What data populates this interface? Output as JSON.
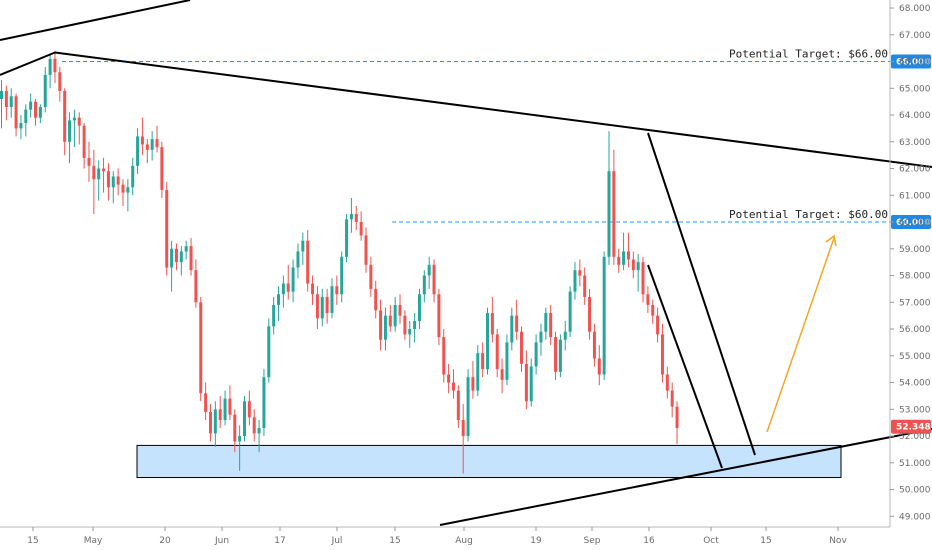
{
  "chart_data": {
    "type": "candlestick",
    "y_axis": {
      "min": 48.6,
      "max": 68.3,
      "ticks": [
        "49.000",
        "50.000",
        "51.000",
        "52.000",
        "53.000",
        "54.000",
        "55.000",
        "56.000",
        "57.000",
        "58.000",
        "59.000",
        "60.000",
        "61.000",
        "62.000",
        "63.000",
        "64.000",
        "65.000",
        "66.000",
        "67.000",
        "68.000"
      ],
      "position": "right"
    },
    "x_axis": {
      "labels": [
        "15",
        "May",
        "20",
        "Jun",
        "17",
        "Jul",
        "15",
        "Aug",
        "19",
        "Sep",
        "16",
        "Oct",
        "15",
        "Nov"
      ]
    },
    "last_price": {
      "value": 52.348,
      "label": "52.348",
      "color": "#ef5350"
    },
    "annotations": [
      {
        "text": "Potential Target: $66.00",
        "price": 66.0,
        "badge": "66.000"
      },
      {
        "text": "Potential Target: $60.00",
        "price": 60.0,
        "badge": "60.000"
      }
    ],
    "support_zone": {
      "low": 50.45,
      "high": 51.65
    },
    "colors": {
      "up": "#26a69a",
      "down": "#ef5350",
      "target_line": "#2196f3",
      "badge": "#1e88e5",
      "zone_fill": "#bbdefb",
      "trendline": "#000000",
      "projection_arrow": "#f5a623"
    },
    "candles": [
      [
        64.6,
        65.3,
        63.5,
        64.9
      ],
      [
        64.9,
        65.1,
        63.8,
        64.3
      ],
      [
        64.3,
        65.0,
        63.9,
        64.7
      ],
      [
        64.7,
        64.8,
        63.2,
        63.5
      ],
      [
        63.5,
        64.0,
        63.1,
        63.7
      ],
      [
        63.7,
        64.4,
        63.2,
        64.2
      ],
      [
        64.2,
        64.8,
        63.9,
        64.5
      ],
      [
        64.5,
        64.6,
        63.6,
        63.9
      ],
      [
        63.9,
        64.4,
        63.7,
        64.3
      ],
      [
        64.3,
        65.8,
        64.1,
        65.5
      ],
      [
        65.5,
        66.3,
        65.0,
        66.1
      ],
      [
        66.1,
        66.4,
        65.2,
        65.6
      ],
      [
        65.6,
        65.8,
        64.5,
        64.9
      ],
      [
        64.9,
        65.0,
        62.5,
        63.0
      ],
      [
        63.0,
        64.1,
        62.2,
        63.8
      ],
      [
        63.8,
        64.2,
        62.8,
        63.9
      ],
      [
        63.9,
        64.1,
        62.9,
        63.6
      ],
      [
        63.6,
        63.7,
        62.0,
        62.4
      ],
      [
        62.4,
        63.0,
        61.5,
        62.1
      ],
      [
        62.1,
        62.7,
        60.3,
        61.6
      ],
      [
        61.6,
        62.3,
        60.8,
        62.0
      ],
      [
        62.0,
        62.4,
        61.1,
        61.9
      ],
      [
        61.9,
        62.2,
        60.8,
        61.3
      ],
      [
        61.3,
        61.9,
        60.7,
        61.7
      ],
      [
        61.7,
        62.0,
        61.0,
        61.4
      ],
      [
        61.4,
        61.6,
        60.6,
        61.1
      ],
      [
        61.1,
        61.6,
        60.4,
        61.3
      ],
      [
        61.3,
        62.4,
        61.0,
        62.1
      ],
      [
        62.1,
        63.5,
        61.8,
        63.2
      ],
      [
        63.2,
        63.9,
        62.5,
        62.9
      ],
      [
        62.9,
        63.1,
        62.2,
        62.7
      ],
      [
        62.7,
        63.4,
        62.3,
        63.1
      ],
      [
        63.1,
        63.6,
        62.6,
        62.8
      ],
      [
        62.8,
        63.0,
        60.9,
        61.2
      ],
      [
        61.2,
        61.5,
        58.0,
        58.3
      ],
      [
        58.3,
        59.3,
        57.4,
        59.0
      ],
      [
        59.0,
        59.2,
        58.2,
        58.5
      ],
      [
        58.5,
        59.1,
        58.0,
        58.9
      ],
      [
        58.9,
        59.3,
        58.6,
        59.1
      ],
      [
        59.1,
        59.4,
        58.0,
        58.2
      ],
      [
        58.2,
        58.6,
        56.8,
        57.0
      ],
      [
        57.0,
        57.2,
        53.3,
        53.6
      ],
      [
        53.6,
        54.0,
        52.6,
        52.9
      ],
      [
        52.9,
        53.2,
        51.8,
        52.1
      ],
      [
        52.1,
        53.3,
        51.6,
        53.0
      ],
      [
        53.0,
        53.5,
        52.3,
        52.6
      ],
      [
        52.6,
        53.7,
        52.4,
        53.4
      ],
      [
        53.4,
        53.9,
        52.6,
        52.8
      ],
      [
        52.8,
        53.0,
        51.4,
        51.8
      ],
      [
        51.8,
        52.4,
        50.7,
        52.0
      ],
      [
        52.0,
        53.5,
        51.8,
        53.3
      ],
      [
        53.3,
        53.7,
        52.4,
        52.7
      ],
      [
        52.7,
        53.0,
        51.8,
        52.1
      ],
      [
        52.1,
        52.6,
        51.4,
        52.3
      ],
      [
        52.3,
        54.5,
        52.0,
        54.2
      ],
      [
        54.2,
        56.4,
        54.0,
        56.1
      ],
      [
        56.1,
        57.2,
        55.8,
        56.9
      ],
      [
        56.9,
        57.6,
        56.3,
        57.3
      ],
      [
        57.3,
        58.0,
        56.8,
        57.7
      ],
      [
        57.7,
        58.4,
        57.1,
        57.4
      ],
      [
        57.4,
        58.6,
        57.0,
        58.3
      ],
      [
        58.3,
        59.2,
        57.9,
        58.9
      ],
      [
        58.9,
        59.6,
        58.4,
        59.3
      ],
      [
        59.3,
        59.7,
        57.4,
        57.7
      ],
      [
        57.7,
        58.0,
        56.9,
        57.3
      ],
      [
        57.3,
        57.6,
        56.0,
        56.4
      ],
      [
        56.4,
        57.5,
        56.1,
        57.2
      ],
      [
        57.2,
        57.5,
        56.2,
        56.6
      ],
      [
        56.6,
        57.9,
        56.4,
        57.6
      ],
      [
        57.6,
        58.0,
        56.9,
        57.3
      ],
      [
        57.3,
        58.9,
        57.0,
        58.7
      ],
      [
        58.7,
        60.3,
        58.5,
        60.1
      ],
      [
        60.1,
        60.9,
        59.6,
        60.3
      ],
      [
        60.3,
        60.6,
        59.7,
        60.0
      ],
      [
        60.0,
        60.4,
        59.3,
        59.5
      ],
      [
        59.5,
        59.8,
        58.1,
        58.4
      ],
      [
        58.4,
        58.7,
        57.2,
        57.5
      ],
      [
        57.5,
        57.8,
        56.4,
        56.7
      ],
      [
        56.7,
        57.1,
        55.2,
        55.6
      ],
      [
        55.6,
        56.8,
        55.2,
        56.5
      ],
      [
        56.5,
        56.9,
        55.9,
        56.1
      ],
      [
        56.1,
        57.2,
        55.9,
        56.9
      ],
      [
        56.9,
        57.3,
        56.2,
        56.5
      ],
      [
        56.5,
        56.7,
        55.6,
        55.8
      ],
      [
        55.8,
        56.3,
        55.3,
        56.0
      ],
      [
        56.0,
        56.6,
        55.5,
        56.3
      ],
      [
        56.3,
        57.5,
        56.0,
        57.3
      ],
      [
        57.3,
        58.2,
        57.0,
        58.0
      ],
      [
        58.0,
        58.7,
        57.5,
        58.4
      ],
      [
        58.4,
        58.6,
        57.0,
        57.3
      ],
      [
        57.3,
        57.5,
        55.4,
        55.7
      ],
      [
        55.7,
        56.0,
        54.0,
        54.3
      ],
      [
        54.3,
        54.7,
        53.6,
        54.0
      ],
      [
        54.0,
        54.5,
        53.4,
        53.7
      ],
      [
        53.7,
        53.9,
        52.3,
        52.6
      ],
      [
        52.6,
        53.2,
        50.6,
        52.0
      ],
      [
        52.0,
        54.5,
        51.8,
        54.2
      ],
      [
        54.2,
        54.8,
        53.4,
        53.7
      ],
      [
        53.7,
        55.4,
        53.5,
        55.1
      ],
      [
        55.1,
        55.5,
        54.2,
        54.5
      ],
      [
        54.5,
        56.8,
        54.3,
        56.6
      ],
      [
        56.6,
        57.2,
        55.5,
        55.8
      ],
      [
        55.8,
        56.0,
        54.2,
        54.5
      ],
      [
        54.5,
        54.9,
        53.6,
        54.1
      ],
      [
        54.1,
        55.8,
        53.9,
        55.5
      ],
      [
        55.5,
        56.8,
        55.2,
        56.5
      ],
      [
        56.5,
        57.1,
        55.6,
        55.9
      ],
      [
        55.9,
        56.1,
        54.4,
        54.7
      ],
      [
        54.7,
        55.2,
        53.0,
        53.3
      ],
      [
        53.3,
        54.9,
        53.1,
        54.6
      ],
      [
        54.6,
        55.8,
        54.3,
        55.5
      ],
      [
        55.5,
        56.2,
        55.0,
        55.9
      ],
      [
        55.9,
        56.8,
        55.6,
        56.6
      ],
      [
        56.6,
        56.9,
        55.4,
        55.7
      ],
      [
        55.7,
        55.9,
        54.1,
        54.4
      ],
      [
        54.4,
        55.8,
        54.2,
        55.6
      ],
      [
        55.6,
        56.3,
        55.2,
        55.9
      ],
      [
        55.9,
        57.6,
        55.7,
        57.4
      ],
      [
        57.4,
        58.5,
        57.1,
        58.2
      ],
      [
        58.2,
        58.6,
        57.6,
        58.0
      ],
      [
        58.0,
        58.3,
        56.9,
        57.2
      ],
      [
        57.2,
        57.5,
        55.6,
        55.9
      ],
      [
        55.9,
        56.2,
        54.6,
        54.9
      ],
      [
        54.9,
        55.4,
        53.9,
        54.3
      ],
      [
        54.3,
        58.9,
        54.1,
        58.7
      ],
      [
        58.7,
        63.4,
        58.4,
        61.9
      ],
      [
        61.9,
        62.7,
        58.4,
        58.7
      ],
      [
        58.7,
        59.0,
        58.1,
        58.4
      ],
      [
        58.4,
        59.6,
        58.2,
        58.9
      ],
      [
        58.9,
        59.6,
        58.3,
        58.6
      ],
      [
        58.6,
        58.9,
        57.9,
        58.2
      ],
      [
        58.2,
        58.8,
        57.4,
        58.5
      ],
      [
        58.5,
        58.7,
        57.0,
        57.3
      ],
      [
        57.3,
        57.6,
        56.6,
        56.9
      ],
      [
        56.9,
        57.1,
        56.2,
        56.5
      ],
      [
        56.5,
        56.8,
        55.5,
        55.8
      ],
      [
        55.8,
        56.2,
        54.0,
        54.3
      ],
      [
        54.3,
        54.6,
        53.4,
        53.7
      ],
      [
        53.7,
        54.0,
        52.7,
        53.1
      ],
      [
        53.1,
        53.3,
        51.7,
        52.3
      ]
    ],
    "trendlines": [
      {
        "name": "upper-trendline",
        "from": [
          55,
          52.5
        ],
        "to": [
          932,
          167
        ]
      },
      {
        "name": "lower-trendline",
        "from": [
          440,
          525
        ],
        "to": [
          932,
          429
        ]
      },
      {
        "name": "left-trendline",
        "from": [
          0,
          75
        ],
        "to": [
          55,
          52.5
        ]
      },
      {
        "name": "left-upper-trendline",
        "from": [
          0,
          40
        ],
        "to": [
          190,
          0
        ]
      }
    ]
  }
}
